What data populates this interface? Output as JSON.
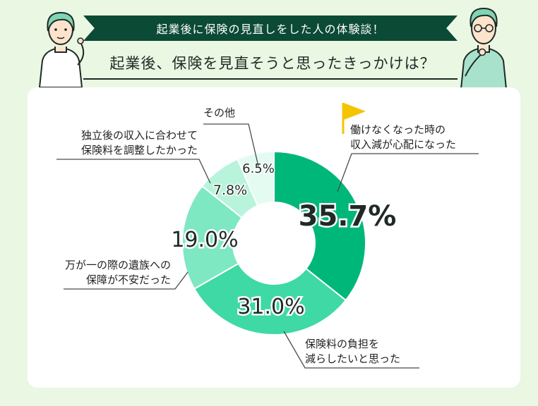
{
  "banner": {
    "title": "起業後に保険の見直しをした人の体験談！"
  },
  "heading": {
    "question": "起業後、保険を見直そうと思ったきっかけは？"
  },
  "colors": {
    "background": "#eaf7e3",
    "banner": "#0b4a35",
    "card": "#ffffff",
    "segments": [
      "#00b77a",
      "#3ed9a4",
      "#7ee8c2",
      "#b8f4dc",
      "#e3fbf1"
    ],
    "flag": "#f5c400"
  },
  "chart_data": {
    "type": "pie",
    "donut": true,
    "title": "",
    "unit": "%",
    "categories": [
      "働けなくなった時の収入減が心配になった",
      "保険料の負担を減らしたいと思った",
      "万が一の際の遺族への保障が不安だった",
      "独立後の収入に合わせて保険料を調整したかった",
      "その他"
    ],
    "values": [
      35.7,
      31.0,
      19.0,
      7.8,
      6.5
    ],
    "value_labels": [
      "35.7%",
      "31.0%",
      "19.0%",
      "7.8%",
      "6.5%"
    ],
    "label_lines": [
      [
        "働けなくなった時の",
        "収入減が心配になった"
      ],
      [
        "保険料の負担を",
        "減らしたいと思った"
      ],
      [
        "万が一の際の遺族への",
        "保障が不安だった"
      ],
      [
        "独立後の収入に合わせて",
        "保険料を調整したかった"
      ],
      [
        "その他"
      ]
    ],
    "highlight_icon": "flag-icon"
  }
}
